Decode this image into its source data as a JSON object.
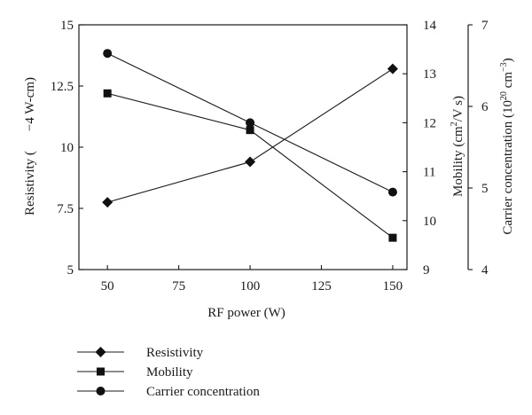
{
  "chart_data": {
    "type": "line",
    "x": [
      50,
      100,
      150
    ],
    "xlabel": "RF power (W)",
    "xlim": [
      40,
      155
    ],
    "xticks": [
      50,
      75,
      100,
      125,
      150
    ],
    "axes": {
      "left": {
        "title_prefix": "Resistivity (",
        "title_main": "−4 W-cm)",
        "ylim": [
          5,
          15
        ],
        "ticks": [
          "5",
          "7.5",
          "10",
          "12.5",
          "15"
        ],
        "tick_values": [
          5,
          7.5,
          10,
          12.5,
          15
        ]
      },
      "right1": {
        "title_main": "Mobility (cm",
        "title_sup": "2",
        "title_end": "/V s)",
        "ylim": [
          9,
          14
        ],
        "ticks": [
          "9",
          "10",
          "11",
          "12",
          "13",
          "14"
        ],
        "tick_values": [
          9,
          10,
          11,
          12,
          13,
          14
        ]
      },
      "right2": {
        "title_main": "Carrier concentration (10",
        "title_sup1": "20",
        "title_mid": " cm",
        "title_sup2": "−3",
        "title_end": ")",
        "ylim": [
          4,
          7
        ],
        "ticks": [
          "4",
          "5",
          "6",
          "7"
        ],
        "tick_values": [
          4,
          5,
          6,
          7
        ]
      }
    },
    "series": [
      {
        "name": "Resistivity",
        "axis": "left",
        "marker": "diamond",
        "values": [
          7.75,
          9.4,
          13.2
        ]
      },
      {
        "name": "Mobility",
        "axis": "right1",
        "marker": "square",
        "values": [
          12.6,
          11.85,
          9.65
        ]
      },
      {
        "name": "Carrier concentration",
        "axis": "right2",
        "marker": "circle",
        "values": [
          6.65,
          5.8,
          4.95
        ]
      }
    ],
    "grid": false,
    "legend_position": "bottom"
  }
}
